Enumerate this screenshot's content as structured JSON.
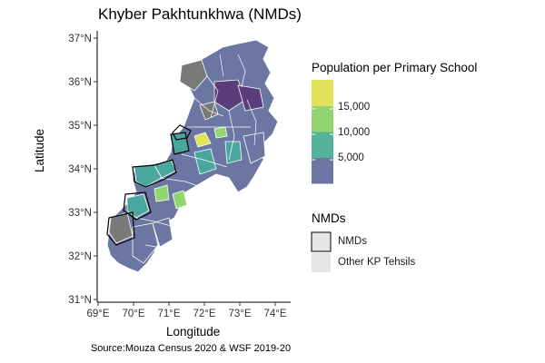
{
  "map": {
    "title": "Khyber Pakhtunkhwa (NMDs)",
    "xlabel": "Longitude",
    "ylabel": "Latitude",
    "x_ticks": [
      "69°E",
      "70°E",
      "71°E",
      "72°E",
      "73°E",
      "74°E"
    ],
    "y_ticks": [
      "37°N",
      "36°N",
      "35°N",
      "34°N",
      "33°N",
      "32°N",
      "31°N"
    ],
    "caption": "Source:Mouza Census 2020 & WSF 2019-20"
  },
  "legend_fill": {
    "title": "Population per Primary School",
    "ticks": [
      "15,000",
      "10,000",
      "5,000"
    ],
    "colors": [
      "#6b76a2",
      "#53b49a",
      "#92d46e",
      "#e2e35b"
    ]
  },
  "legend_nmd": {
    "title": "NMDs",
    "items": [
      {
        "label": "NMDs",
        "fill": "#e6e6e6",
        "stroke": "#000000"
      },
      {
        "label": "Other KP Tehsils",
        "fill": "#e6e6e6",
        "stroke": "none"
      }
    ]
  },
  "colors": {
    "no_data": "#7a7a7a",
    "low": "#6b76a2",
    "darkest": "#5a3d7a",
    "mid": "#4aa7a0",
    "high": "#92d46e",
    "highest": "#e2e35b"
  }
}
